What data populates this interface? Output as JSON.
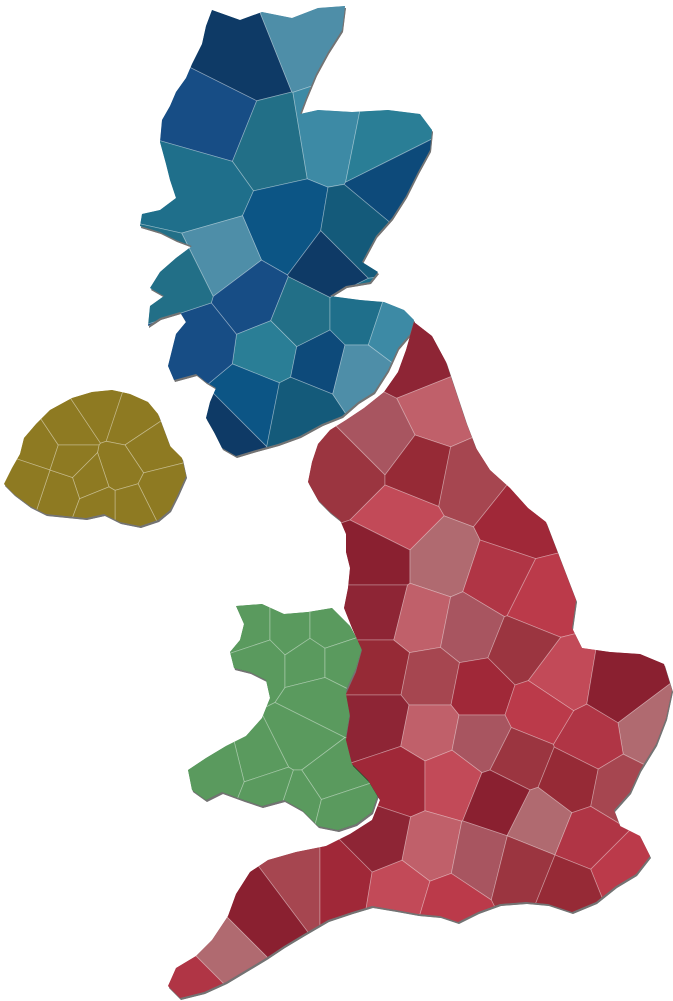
{
  "map": {
    "countries": [
      {
        "id": "scotland",
        "palette": [
          "#4e8ea8",
          "#1f6f8b",
          "#0d4a7a",
          "#0e3a66",
          "#226f87",
          "#2a7e96",
          "#145a7a",
          "#174d85",
          "#3d8aa5",
          "#0c5585"
        ]
      },
      {
        "id": "northern-ireland",
        "palette": [
          "#a8932a",
          "#b8a030",
          "#9c8a3e",
          "#8e7a22",
          "#c0a83a",
          "#a3902f",
          "#b4a244"
        ]
      },
      {
        "id": "wales",
        "palette": [
          "#1e6e2e",
          "#2f8e3a",
          "#3aa84a",
          "#5a9a5e",
          "#145a22",
          "#2aa34a",
          "#4c9a56"
        ]
      },
      {
        "id": "england",
        "palette": [
          "#9b3540",
          "#b03545",
          "#a64650",
          "#8e2535",
          "#c24a58",
          "#a85560",
          "#b06a70",
          "#962a36",
          "#bb3a4a",
          "#a02838",
          "#c0606a",
          "#8a2030"
        ]
      }
    ]
  }
}
